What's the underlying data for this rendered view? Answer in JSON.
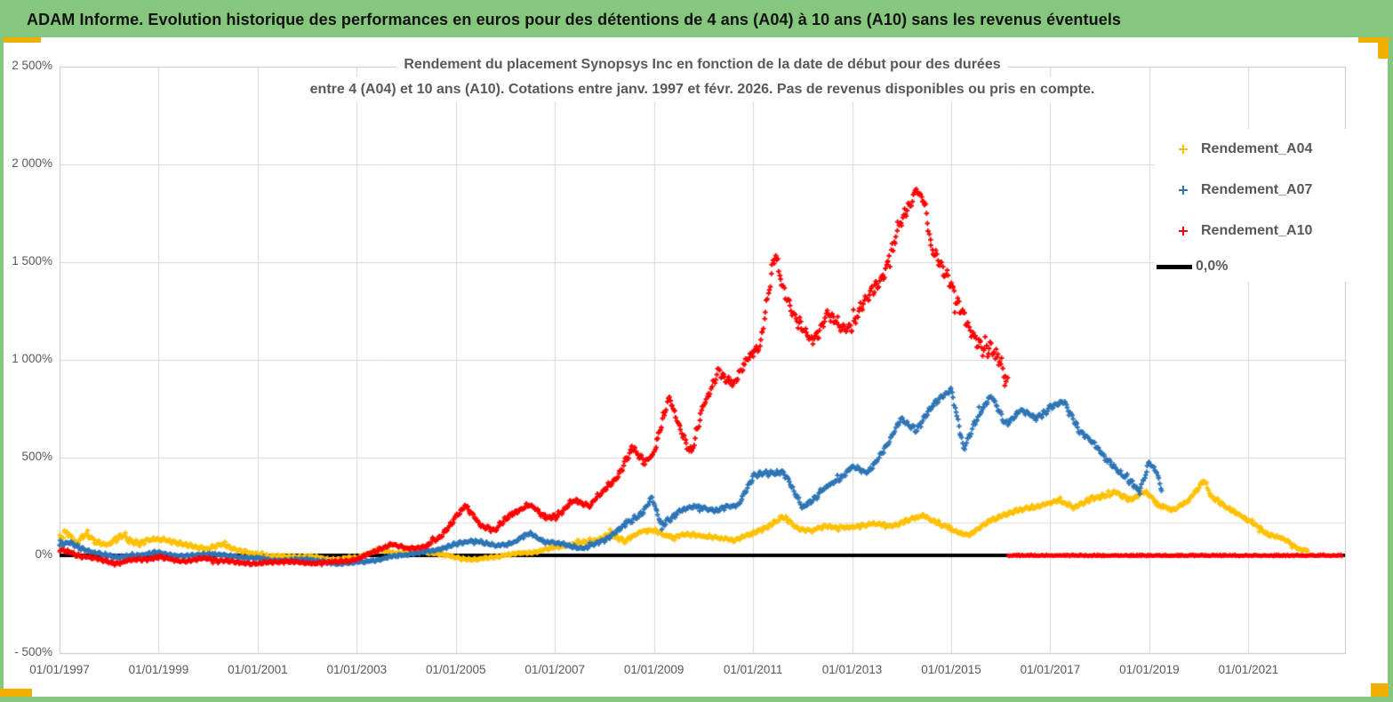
{
  "window": {
    "header_title": "ADAM Informe. Evolution historique des performances en euros pour des détentions de 4 ans (A04) à 10 ans (A10) sans les revenus éventuels"
  },
  "colors": {
    "header_green": "#86C77E",
    "accent_yellow": "#F0B000",
    "gridline": "#D9D9D9",
    "plot_border": "#C6C6C6",
    "axis_text": "#595959",
    "zero_line": "#000000",
    "series_a04": "#FFC000",
    "series_a07": "#2E75B6",
    "series_a10": "#FE0000"
  },
  "chart_data": {
    "type": "scatter",
    "title_lines": [
      "Rendement du placement Synopsys Inc en fonction de la date de début pour des durées",
      "entre 4 (A04) et 10 ans (A10). Cotations entre janv. 1997 et févr. 2026. Pas de revenus disponibles ou pris en compte."
    ],
    "x_axis": {
      "domain": [
        1997.0,
        2022.95
      ],
      "tick_years": [
        1997,
        1999,
        2001,
        2003,
        2005,
        2007,
        2009,
        2011,
        2013,
        2015,
        2017,
        2019,
        2021
      ],
      "tick_labels": [
        "01/01/1997",
        "01/01/1999",
        "01/01/2001",
        "01/01/2003",
        "01/01/2005",
        "01/01/2007",
        "01/01/2009",
        "01/01/2011",
        "01/01/2013",
        "01/01/2015",
        "01/01/2017",
        "01/01/2019",
        "01/01/2021"
      ]
    },
    "y_axis": {
      "unit": "%",
      "tick_values": [
        2500,
        2000,
        1500,
        1000,
        500,
        0,
        -500
      ],
      "tick_labels": [
        "2 500%",
        "2 000%",
        "1 500%",
        "1 000%",
        "500%",
        "0%",
        "- 500%"
      ],
      "extra_gridline_pct": 168
    },
    "legend": [
      {
        "label": "Rendement_A04",
        "color": "#FFC000",
        "marker": "plus"
      },
      {
        "label": "Rendement_A07",
        "color": "#2E75B6",
        "marker": "plus"
      },
      {
        "label": "Rendement_A10",
        "color": "#FE0000",
        "marker": "plus"
      },
      {
        "label": "0,0%",
        "color": "#000000",
        "marker": "line"
      }
    ],
    "zero_line_pct": 0,
    "samples_per_year": 52,
    "series": [
      {
        "name": "Rendement_A04",
        "color": "#FFC000",
        "seed": 11,
        "anchors": [
          [
            1997.0,
            90,
            40
          ],
          [
            1997.15,
            130,
            25
          ],
          [
            1997.35,
            55,
            20
          ],
          [
            1997.55,
            110,
            20
          ],
          [
            1997.75,
            70,
            15
          ],
          [
            1998.0,
            55,
            15
          ],
          [
            1998.3,
            108,
            18
          ],
          [
            1998.55,
            60,
            15
          ],
          [
            1998.8,
            75,
            15
          ],
          [
            1999.1,
            88,
            15
          ],
          [
            1999.4,
            60,
            12
          ],
          [
            1999.7,
            45,
            12
          ],
          [
            2000.0,
            35,
            12
          ],
          [
            2000.3,
            55,
            12
          ],
          [
            2000.7,
            18,
            10
          ],
          [
            2001.0,
            5,
            10
          ],
          [
            2001.5,
            -8,
            8
          ],
          [
            2002.0,
            -5,
            8
          ],
          [
            2002.5,
            -22,
            8
          ],
          [
            2003.0,
            -12,
            8
          ],
          [
            2003.4,
            28,
            10
          ],
          [
            2003.8,
            12,
            8
          ],
          [
            2004.2,
            25,
            8
          ],
          [
            2004.6,
            10,
            8
          ],
          [
            2005.0,
            -12,
            8
          ],
          [
            2005.4,
            -22,
            8
          ],
          [
            2005.8,
            -8,
            8
          ],
          [
            2006.2,
            8,
            8
          ],
          [
            2006.6,
            18,
            8
          ],
          [
            2007.0,
            40,
            10
          ],
          [
            2007.4,
            60,
            10
          ],
          [
            2007.8,
            75,
            12
          ],
          [
            2008.1,
            110,
            15
          ],
          [
            2008.4,
            70,
            12
          ],
          [
            2008.7,
            120,
            12
          ],
          [
            2009.0,
            125,
            12
          ],
          [
            2009.4,
            95,
            10
          ],
          [
            2009.8,
            110,
            10
          ],
          [
            2010.2,
            90,
            10
          ],
          [
            2010.6,
            80,
            10
          ],
          [
            2011.0,
            110,
            12
          ],
          [
            2011.3,
            150,
            12
          ],
          [
            2011.6,
            195,
            15
          ],
          [
            2011.9,
            140,
            12
          ],
          [
            2012.2,
            125,
            10
          ],
          [
            2012.5,
            150,
            10
          ],
          [
            2013.0,
            140,
            12
          ],
          [
            2013.4,
            165,
            10
          ],
          [
            2013.8,
            150,
            12
          ],
          [
            2014.1,
            180,
            12
          ],
          [
            2014.45,
            200,
            12
          ],
          [
            2014.8,
            160,
            12
          ],
          [
            2015.05,
            120,
            12
          ],
          [
            2015.35,
            105,
            10
          ],
          [
            2015.7,
            160,
            12
          ],
          [
            2016.0,
            205,
            12
          ],
          [
            2016.4,
            230,
            12
          ],
          [
            2016.8,
            255,
            12
          ],
          [
            2017.2,
            280,
            12
          ],
          [
            2017.5,
            245,
            12
          ],
          [
            2017.9,
            295,
            15
          ],
          [
            2018.3,
            320,
            15
          ],
          [
            2018.6,
            285,
            15
          ],
          [
            2018.9,
            330,
            15
          ],
          [
            2019.2,
            250,
            15
          ],
          [
            2019.5,
            235,
            12
          ],
          [
            2019.8,
            280,
            12
          ],
          [
            2020.1,
            390,
            18
          ],
          [
            2020.25,
            300,
            15
          ],
          [
            2020.5,
            255,
            12
          ],
          [
            2020.8,
            215,
            12
          ],
          [
            2021.1,
            160,
            12
          ],
          [
            2021.4,
            110,
            10
          ],
          [
            2021.7,
            85,
            10
          ],
          [
            2022.0,
            35,
            8
          ],
          [
            2022.2,
            25,
            6
          ]
        ]
      },
      {
        "name": "Rendement_A07",
        "color": "#2E75B6",
        "seed": 22,
        "anchors": [
          [
            1997.0,
            55,
            25
          ],
          [
            1997.2,
            75,
            15
          ],
          [
            1997.5,
            25,
            12
          ],
          [
            1997.8,
            8,
            10
          ],
          [
            1998.2,
            -12,
            10
          ],
          [
            1998.6,
            5,
            10
          ],
          [
            1999.0,
            12,
            10
          ],
          [
            1999.5,
            -5,
            8
          ],
          [
            2000.0,
            8,
            8
          ],
          [
            2000.5,
            -5,
            8
          ],
          [
            2001.0,
            -15,
            8
          ],
          [
            2001.5,
            -28,
            8
          ],
          [
            2002.0,
            -18,
            8
          ],
          [
            2002.5,
            -42,
            8
          ],
          [
            2003.0,
            -38,
            8
          ],
          [
            2003.5,
            -18,
            8
          ],
          [
            2004.0,
            5,
            8
          ],
          [
            2004.5,
            22,
            8
          ],
          [
            2005.0,
            55,
            10
          ],
          [
            2005.4,
            80,
            10
          ],
          [
            2005.8,
            45,
            10
          ],
          [
            2006.2,
            70,
            10
          ],
          [
            2006.5,
            115,
            12
          ],
          [
            2006.8,
            70,
            10
          ],
          [
            2007.2,
            55,
            10
          ],
          [
            2007.6,
            35,
            10
          ],
          [
            2008.0,
            80,
            12
          ],
          [
            2008.4,
            150,
            15
          ],
          [
            2008.8,
            230,
            18
          ],
          [
            2008.95,
            300,
            15
          ],
          [
            2009.15,
            150,
            15
          ],
          [
            2009.5,
            230,
            15
          ],
          [
            2009.9,
            250,
            12
          ],
          [
            2010.3,
            230,
            12
          ],
          [
            2010.7,
            260,
            12
          ],
          [
            2011.0,
            400,
            15
          ],
          [
            2011.2,
            420,
            15
          ],
          [
            2011.6,
            430,
            15
          ],
          [
            2012.0,
            245,
            15
          ],
          [
            2012.4,
            330,
            15
          ],
          [
            2012.8,
            405,
            15
          ],
          [
            2013.0,
            455,
            15
          ],
          [
            2013.3,
            420,
            15
          ],
          [
            2013.7,
            560,
            18
          ],
          [
            2014.0,
            700,
            18
          ],
          [
            2014.3,
            640,
            18
          ],
          [
            2014.7,
            790,
            18
          ],
          [
            2015.0,
            850,
            18
          ],
          [
            2015.25,
            540,
            20
          ],
          [
            2015.5,
            700,
            20
          ],
          [
            2015.8,
            810,
            20
          ],
          [
            2016.1,
            680,
            20
          ],
          [
            2016.4,
            740,
            18
          ],
          [
            2016.7,
            700,
            18
          ],
          [
            2017.0,
            760,
            18
          ],
          [
            2017.3,
            780,
            18
          ],
          [
            2017.6,
            640,
            18
          ],
          [
            2017.9,
            560,
            18
          ],
          [
            2018.2,
            480,
            18
          ],
          [
            2018.5,
            400,
            18
          ],
          [
            2018.8,
            330,
            18
          ],
          [
            2019.0,
            480,
            20
          ],
          [
            2019.15,
            420,
            18
          ],
          [
            2019.25,
            330,
            15
          ]
        ]
      },
      {
        "name": "Rendement_A10",
        "color": "#FE0000",
        "seed": 33,
        "flat_tail": {
          "from": 2016.15,
          "to": 2022.9,
          "value": 0
        },
        "anchors": [
          [
            1997.0,
            25,
            20
          ],
          [
            1997.3,
            5,
            12
          ],
          [
            1997.7,
            -15,
            10
          ],
          [
            1998.1,
            -40,
            10
          ],
          [
            1998.5,
            -25,
            10
          ],
          [
            1999.0,
            -10,
            10
          ],
          [
            1999.5,
            -30,
            8
          ],
          [
            2000.0,
            -15,
            8
          ],
          [
            2000.5,
            -35,
            8
          ],
          [
            2001.0,
            -42,
            8
          ],
          [
            2001.5,
            -30,
            8
          ],
          [
            2002.0,
            -40,
            8
          ],
          [
            2002.5,
            -35,
            8
          ],
          [
            2003.0,
            -20,
            8
          ],
          [
            2003.4,
            25,
            10
          ],
          [
            2003.7,
            60,
            10
          ],
          [
            2004.0,
            35,
            10
          ],
          [
            2004.4,
            45,
            10
          ],
          [
            2004.7,
            95,
            15
          ],
          [
            2005.0,
            200,
            18
          ],
          [
            2005.2,
            245,
            15
          ],
          [
            2005.5,
            160,
            15
          ],
          [
            2005.8,
            125,
            15
          ],
          [
            2006.1,
            210,
            15
          ],
          [
            2006.5,
            260,
            15
          ],
          [
            2006.8,
            195,
            15
          ],
          [
            2007.1,
            210,
            15
          ],
          [
            2007.4,
            285,
            15
          ],
          [
            2007.7,
            255,
            15
          ],
          [
            2008.0,
            330,
            18
          ],
          [
            2008.3,
            420,
            20
          ],
          [
            2008.55,
            545,
            22
          ],
          [
            2008.8,
            480,
            20
          ],
          [
            2009.0,
            530,
            20
          ],
          [
            2009.3,
            800,
            25
          ],
          [
            2009.55,
            640,
            22
          ],
          [
            2009.75,
            530,
            35
          ],
          [
            2010.0,
            760,
            25
          ],
          [
            2010.3,
            950,
            25
          ],
          [
            2010.6,
            860,
            25
          ],
          [
            2010.9,
            1020,
            25
          ],
          [
            2011.15,
            1080,
            30
          ],
          [
            2011.45,
            1560,
            40
          ],
          [
            2011.6,
            1380,
            45
          ],
          [
            2011.9,
            1180,
            40
          ],
          [
            2012.2,
            1100,
            35
          ],
          [
            2012.5,
            1230,
            35
          ],
          [
            2012.8,
            1160,
            35
          ],
          [
            2013.0,
            1190,
            40
          ],
          [
            2013.3,
            1310,
            35
          ],
          [
            2013.6,
            1420,
            40
          ],
          [
            2013.9,
            1650,
            45
          ],
          [
            2014.1,
            1750,
            45
          ],
          [
            2014.3,
            1880,
            40
          ],
          [
            2014.45,
            1820,
            40
          ],
          [
            2014.6,
            1560,
            40
          ],
          [
            2014.8,
            1480,
            40
          ],
          [
            2015.0,
            1390,
            45
          ],
          [
            2015.2,
            1240,
            45
          ],
          [
            2015.45,
            1100,
            60
          ],
          [
            2015.7,
            1080,
            60
          ],
          [
            2015.95,
            1020,
            70
          ],
          [
            2016.15,
            850,
            70
          ]
        ]
      }
    ]
  }
}
